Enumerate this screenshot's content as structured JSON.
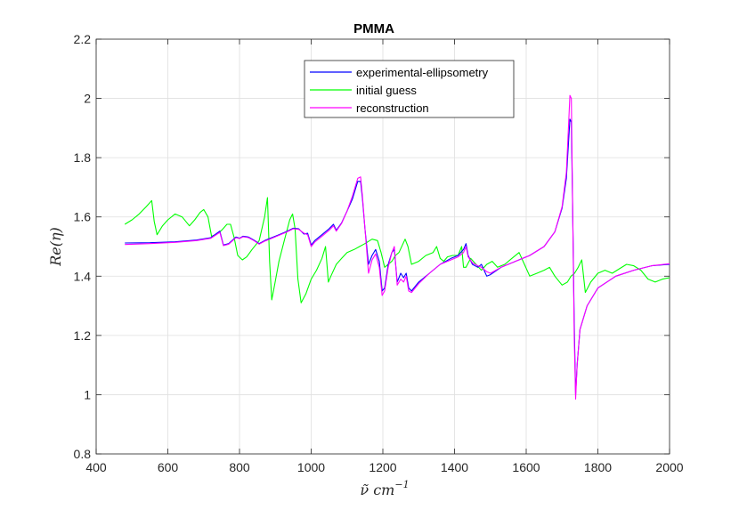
{
  "chart_data": {
    "type": "line",
    "title": "PMMA",
    "xlabel": "ν̃ cm",
    "xlabel_sup": "−1",
    "ylabel": "Re(η)",
    "xlim": [
      400,
      2000
    ],
    "ylim": [
      0.8,
      2.2
    ],
    "xticks": [
      400,
      600,
      800,
      1000,
      1200,
      1400,
      1600,
      1800,
      2000
    ],
    "yticks": [
      0.8,
      1,
      1.2,
      1.4,
      1.6,
      1.8,
      2,
      2.2
    ],
    "xtick_labels": [
      "400",
      "600",
      "800",
      "1000",
      "1200",
      "1400",
      "1600",
      "1800",
      "2000"
    ],
    "ytick_labels": [
      "0.8",
      "1",
      "1.2",
      "1.4",
      "1.6",
      "1.8",
      "2",
      "2.2"
    ],
    "grid": true,
    "legend_position": "top-center",
    "series": [
      {
        "name": "experimental-ellipsometry",
        "color": "#0000ff",
        "points": [
          [
            480,
            1.512
          ],
          [
            550,
            1.513
          ],
          [
            620,
            1.516
          ],
          [
            680,
            1.522
          ],
          [
            720,
            1.53
          ],
          [
            745,
            1.552
          ],
          [
            755,
            1.505
          ],
          [
            770,
            1.51
          ],
          [
            790,
            1.532
          ],
          [
            800,
            1.528
          ],
          [
            810,
            1.535
          ],
          [
            825,
            1.532
          ],
          [
            840,
            1.522
          ],
          [
            855,
            1.51
          ],
          [
            870,
            1.52
          ],
          [
            890,
            1.53
          ],
          [
            910,
            1.54
          ],
          [
            930,
            1.55
          ],
          [
            950,
            1.562
          ],
          [
            965,
            1.56
          ],
          [
            980,
            1.542
          ],
          [
            990,
            1.545
          ],
          [
            1000,
            1.505
          ],
          [
            1010,
            1.52
          ],
          [
            1030,
            1.54
          ],
          [
            1050,
            1.56
          ],
          [
            1062,
            1.575
          ],
          [
            1070,
            1.555
          ],
          [
            1085,
            1.58
          ],
          [
            1100,
            1.62
          ],
          [
            1115,
            1.66
          ],
          [
            1130,
            1.72
          ],
          [
            1138,
            1.72
          ],
          [
            1143,
            1.66
          ],
          [
            1150,
            1.56
          ],
          [
            1160,
            1.44
          ],
          [
            1170,
            1.47
          ],
          [
            1180,
            1.49
          ],
          [
            1190,
            1.45
          ],
          [
            1198,
            1.35
          ],
          [
            1205,
            1.36
          ],
          [
            1215,
            1.44
          ],
          [
            1225,
            1.48
          ],
          [
            1232,
            1.49
          ],
          [
            1240,
            1.38
          ],
          [
            1250,
            1.41
          ],
          [
            1258,
            1.395
          ],
          [
            1265,
            1.41
          ],
          [
            1272,
            1.36
          ],
          [
            1280,
            1.35
          ],
          [
            1300,
            1.38
          ],
          [
            1330,
            1.41
          ],
          [
            1360,
            1.44
          ],
          [
            1390,
            1.46
          ],
          [
            1410,
            1.47
          ],
          [
            1425,
            1.49
          ],
          [
            1432,
            1.51
          ],
          [
            1438,
            1.47
          ],
          [
            1450,
            1.44
          ],
          [
            1465,
            1.43
          ],
          [
            1475,
            1.44
          ],
          [
            1490,
            1.4
          ],
          [
            1500,
            1.405
          ],
          [
            1530,
            1.43
          ],
          [
            1570,
            1.45
          ],
          [
            1610,
            1.47
          ],
          [
            1650,
            1.5
          ],
          [
            1680,
            1.55
          ],
          [
            1700,
            1.63
          ],
          [
            1712,
            1.73
          ],
          [
            1722,
            1.93
          ],
          [
            1726,
            1.92
          ],
          [
            1730,
            1.6
          ],
          [
            1734,
            1.25
          ],
          [
            1738,
            1.0
          ],
          [
            1742,
            1.1
          ],
          [
            1750,
            1.22
          ],
          [
            1770,
            1.3
          ],
          [
            1800,
            1.36
          ],
          [
            1850,
            1.4
          ],
          [
            1900,
            1.42
          ],
          [
            1950,
            1.435
          ],
          [
            2000,
            1.44
          ]
        ]
      },
      {
        "name": "initial guess",
        "color": "#00ff00",
        "points": [
          [
            480,
            1.575
          ],
          [
            500,
            1.59
          ],
          [
            520,
            1.61
          ],
          [
            540,
            1.635
          ],
          [
            555,
            1.655
          ],
          [
            562,
            1.585
          ],
          [
            570,
            1.54
          ],
          [
            585,
            1.57
          ],
          [
            600,
            1.59
          ],
          [
            620,
            1.61
          ],
          [
            640,
            1.6
          ],
          [
            660,
            1.57
          ],
          [
            675,
            1.59
          ],
          [
            690,
            1.615
          ],
          [
            700,
            1.625
          ],
          [
            712,
            1.6
          ],
          [
            722,
            1.535
          ],
          [
            735,
            1.54
          ],
          [
            750,
            1.555
          ],
          [
            765,
            1.575
          ],
          [
            775,
            1.575
          ],
          [
            785,
            1.53
          ],
          [
            795,
            1.47
          ],
          [
            808,
            1.455
          ],
          [
            820,
            1.465
          ],
          [
            835,
            1.49
          ],
          [
            855,
            1.52
          ],
          [
            870,
            1.6
          ],
          [
            878,
            1.665
          ],
          [
            884,
            1.45
          ],
          [
            890,
            1.32
          ],
          [
            898,
            1.37
          ],
          [
            910,
            1.45
          ],
          [
            925,
            1.52
          ],
          [
            940,
            1.59
          ],
          [
            948,
            1.61
          ],
          [
            955,
            1.56
          ],
          [
            963,
            1.39
          ],
          [
            972,
            1.31
          ],
          [
            985,
            1.34
          ],
          [
            1000,
            1.39
          ],
          [
            1015,
            1.42
          ],
          [
            1030,
            1.46
          ],
          [
            1040,
            1.5
          ],
          [
            1048,
            1.38
          ],
          [
            1055,
            1.4
          ],
          [
            1070,
            1.44
          ],
          [
            1085,
            1.46
          ],
          [
            1100,
            1.48
          ],
          [
            1120,
            1.49
          ],
          [
            1135,
            1.5
          ],
          [
            1150,
            1.51
          ],
          [
            1170,
            1.525
          ],
          [
            1185,
            1.52
          ],
          [
            1195,
            1.48
          ],
          [
            1205,
            1.43
          ],
          [
            1215,
            1.44
          ],
          [
            1225,
            1.45
          ],
          [
            1235,
            1.47
          ],
          [
            1245,
            1.48
          ],
          [
            1262,
            1.525
          ],
          [
            1270,
            1.5
          ],
          [
            1280,
            1.44
          ],
          [
            1300,
            1.45
          ],
          [
            1320,
            1.47
          ],
          [
            1340,
            1.48
          ],
          [
            1350,
            1.5
          ],
          [
            1360,
            1.46
          ],
          [
            1370,
            1.45
          ],
          [
            1380,
            1.465
          ],
          [
            1395,
            1.47
          ],
          [
            1410,
            1.47
          ],
          [
            1420,
            1.5
          ],
          [
            1425,
            1.43
          ],
          [
            1432,
            1.43
          ],
          [
            1445,
            1.46
          ],
          [
            1460,
            1.44
          ],
          [
            1475,
            1.42
          ],
          [
            1490,
            1.44
          ],
          [
            1505,
            1.45
          ],
          [
            1520,
            1.43
          ],
          [
            1540,
            1.44
          ],
          [
            1560,
            1.46
          ],
          [
            1580,
            1.48
          ],
          [
            1595,
            1.44
          ],
          [
            1610,
            1.4
          ],
          [
            1630,
            1.41
          ],
          [
            1650,
            1.42
          ],
          [
            1665,
            1.43
          ],
          [
            1680,
            1.4
          ],
          [
            1700,
            1.37
          ],
          [
            1715,
            1.38
          ],
          [
            1725,
            1.4
          ],
          [
            1735,
            1.41
          ],
          [
            1745,
            1.43
          ],
          [
            1755,
            1.455
          ],
          [
            1765,
            1.345
          ],
          [
            1780,
            1.38
          ],
          [
            1800,
            1.41
          ],
          [
            1820,
            1.42
          ],
          [
            1840,
            1.41
          ],
          [
            1860,
            1.425
          ],
          [
            1880,
            1.44
          ],
          [
            1900,
            1.435
          ],
          [
            1920,
            1.42
          ],
          [
            1940,
            1.39
          ],
          [
            1960,
            1.38
          ],
          [
            1980,
            1.39
          ],
          [
            2000,
            1.395
          ]
        ]
      },
      {
        "name": "reconstruction",
        "color": "#ff00ff",
        "points": [
          [
            480,
            1.507
          ],
          [
            550,
            1.51
          ],
          [
            620,
            1.514
          ],
          [
            680,
            1.52
          ],
          [
            720,
            1.528
          ],
          [
            745,
            1.548
          ],
          [
            755,
            1.503
          ],
          [
            770,
            1.508
          ],
          [
            790,
            1.53
          ],
          [
            800,
            1.527
          ],
          [
            810,
            1.533
          ],
          [
            825,
            1.53
          ],
          [
            840,
            1.52
          ],
          [
            855,
            1.508
          ],
          [
            870,
            1.518
          ],
          [
            890,
            1.528
          ],
          [
            910,
            1.538
          ],
          [
            930,
            1.548
          ],
          [
            950,
            1.56
          ],
          [
            965,
            1.558
          ],
          [
            980,
            1.545
          ],
          [
            990,
            1.54
          ],
          [
            1000,
            1.5
          ],
          [
            1010,
            1.515
          ],
          [
            1030,
            1.535
          ],
          [
            1050,
            1.555
          ],
          [
            1062,
            1.57
          ],
          [
            1070,
            1.552
          ],
          [
            1085,
            1.578
          ],
          [
            1100,
            1.62
          ],
          [
            1115,
            1.67
          ],
          [
            1130,
            1.73
          ],
          [
            1138,
            1.735
          ],
          [
            1143,
            1.67
          ],
          [
            1150,
            1.56
          ],
          [
            1160,
            1.41
          ],
          [
            1170,
            1.455
          ],
          [
            1180,
            1.475
          ],
          [
            1190,
            1.43
          ],
          [
            1198,
            1.335
          ],
          [
            1205,
            1.35
          ],
          [
            1215,
            1.43
          ],
          [
            1225,
            1.48
          ],
          [
            1232,
            1.5
          ],
          [
            1240,
            1.37
          ],
          [
            1250,
            1.39
          ],
          [
            1258,
            1.38
          ],
          [
            1265,
            1.4
          ],
          [
            1272,
            1.35
          ],
          [
            1280,
            1.345
          ],
          [
            1300,
            1.375
          ],
          [
            1330,
            1.41
          ],
          [
            1360,
            1.44
          ],
          [
            1390,
            1.455
          ],
          [
            1410,
            1.465
          ],
          [
            1425,
            1.48
          ],
          [
            1432,
            1.5
          ],
          [
            1438,
            1.465
          ],
          [
            1450,
            1.445
          ],
          [
            1465,
            1.435
          ],
          [
            1475,
            1.43
          ],
          [
            1490,
            1.415
          ],
          [
            1500,
            1.41
          ],
          [
            1530,
            1.43
          ],
          [
            1570,
            1.45
          ],
          [
            1610,
            1.47
          ],
          [
            1650,
            1.5
          ],
          [
            1680,
            1.55
          ],
          [
            1700,
            1.635
          ],
          [
            1712,
            1.75
          ],
          [
            1722,
            2.01
          ],
          [
            1726,
            2.0
          ],
          [
            1730,
            1.6
          ],
          [
            1734,
            1.2
          ],
          [
            1738,
            0.985
          ],
          [
            1742,
            1.1
          ],
          [
            1750,
            1.22
          ],
          [
            1770,
            1.3
          ],
          [
            1800,
            1.36
          ],
          [
            1850,
            1.4
          ],
          [
            1900,
            1.42
          ],
          [
            1950,
            1.435
          ],
          [
            2000,
            1.442
          ]
        ]
      }
    ]
  }
}
